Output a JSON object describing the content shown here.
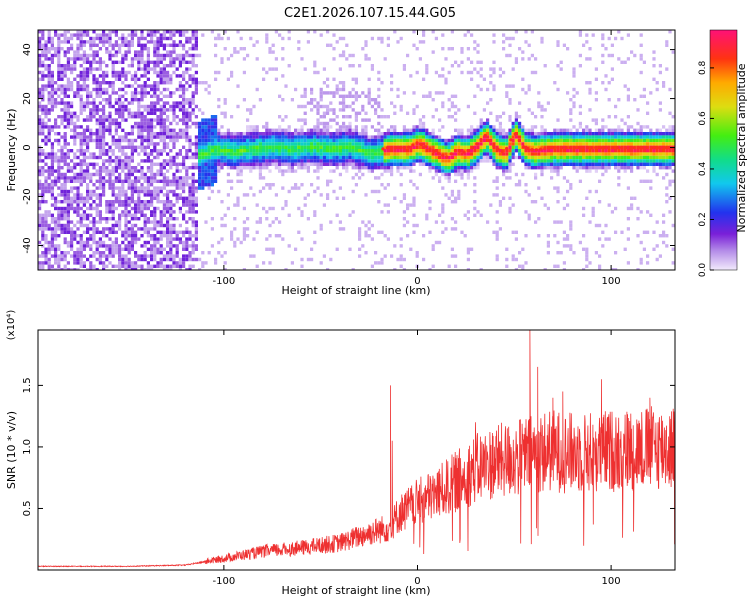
{
  "title": "C2E1.2026.107.15.44.G05",
  "colors": {
    "snr_line": "#ee3030",
    "axis": "#000000",
    "background": "#ffffff"
  },
  "chart_data": [
    {
      "type": "heatmap",
      "title": "C2E1.2026.107.15.44.G05",
      "xlabel": "Height of straight line (km)",
      "ylabel": "Frequency (Hz)",
      "xlim": [
        -196,
        133
      ],
      "ylim": [
        -50,
        48
      ],
      "xticks": [
        -100,
        0,
        100
      ],
      "xtick_labels": [
        "-100",
        "0",
        "100"
      ],
      "yticks": [
        40,
        20,
        0,
        -20,
        -40
      ],
      "ytick_labels": [
        "40",
        "20",
        "0",
        "-20",
        "-40"
      ],
      "colorbar": {
        "label": "Normalized spectral amplitude",
        "range": [
          0,
          0.95
        ],
        "ticks": [
          0.0,
          0.2,
          0.4,
          0.6,
          0.8
        ],
        "tick_labels": [
          "0.0",
          "0.2",
          "0.4",
          "0.6",
          "0.8"
        ],
        "colormap": "rainbow (lavender-purple-blue-cyan-green-yellow-orange-red-magenta)"
      },
      "trace_center_hz": [
        [
          -122,
          -8
        ],
        [
          -115,
          -3
        ],
        [
          -105,
          0
        ],
        [
          -95,
          -1
        ],
        [
          -85,
          0
        ],
        [
          -75,
          1
        ],
        [
          -65,
          0
        ],
        [
          -55,
          1
        ],
        [
          -45,
          0
        ],
        [
          -35,
          1
        ],
        [
          -25,
          -2
        ],
        [
          -15,
          0
        ],
        [
          -5,
          0
        ],
        [
          0,
          2
        ],
        [
          5,
          0
        ],
        [
          10,
          -2
        ],
        [
          15,
          -4
        ],
        [
          20,
          -1
        ],
        [
          25,
          -2
        ],
        [
          30,
          1
        ],
        [
          35,
          5
        ],
        [
          40,
          0
        ],
        [
          45,
          -2
        ],
        [
          50,
          6
        ],
        [
          55,
          0
        ],
        [
          60,
          -1
        ],
        [
          70,
          0
        ],
        [
          80,
          0
        ],
        [
          90,
          0
        ],
        [
          100,
          0
        ],
        [
          110,
          0
        ],
        [
          120,
          0
        ],
        [
          130,
          0
        ]
      ],
      "notes": "broadband noise region left of about -115 km; narrow band near 0 Hz elsewhere"
    },
    {
      "type": "line",
      "xlabel": "Height of straight line (km)",
      "ylabel": "SNR (10 * v/v)",
      "scale_label": "(x10⁴)",
      "xlim": [
        -196,
        133
      ],
      "ylim": [
        0,
        1.95
      ],
      "xticks": [
        -100,
        0,
        100
      ],
      "xtick_labels": [
        "-100",
        "0",
        "100"
      ],
      "yticks": [
        0.5,
        1.0,
        1.5
      ],
      "ytick_labels": [
        "0.5",
        "1.0",
        "1.5"
      ],
      "envelope_x": [
        -196,
        -150,
        -120,
        -105,
        -80,
        -60,
        -40,
        -25,
        -14,
        -10,
        0,
        10,
        20,
        30,
        40,
        50,
        60,
        70,
        80,
        90,
        100,
        110,
        120,
        133
      ],
      "envelope_y": [
        0.03,
        0.03,
        0.04,
        0.08,
        0.15,
        0.18,
        0.22,
        0.3,
        0.35,
        0.45,
        0.55,
        0.62,
        0.72,
        0.82,
        0.88,
        0.9,
        0.95,
        0.97,
        0.95,
        0.96,
        0.97,
        0.98,
        0.99,
        1.0
      ],
      "spikes": [
        {
          "x": -14,
          "y": 1.5
        },
        {
          "x": -13,
          "y": 1.05
        },
        {
          "x": 58,
          "y": 1.95
        },
        {
          "x": 62,
          "y": 1.65
        },
        {
          "x": 70,
          "y": 1.4
        },
        {
          "x": 95,
          "y": 1.55
        },
        {
          "x": 75,
          "y": 1.45
        },
        {
          "x": 120,
          "y": 1.4
        },
        {
          "x": 30,
          "y": 1.2
        }
      ],
      "noise_amplitude_fraction": 0.35
    }
  ]
}
